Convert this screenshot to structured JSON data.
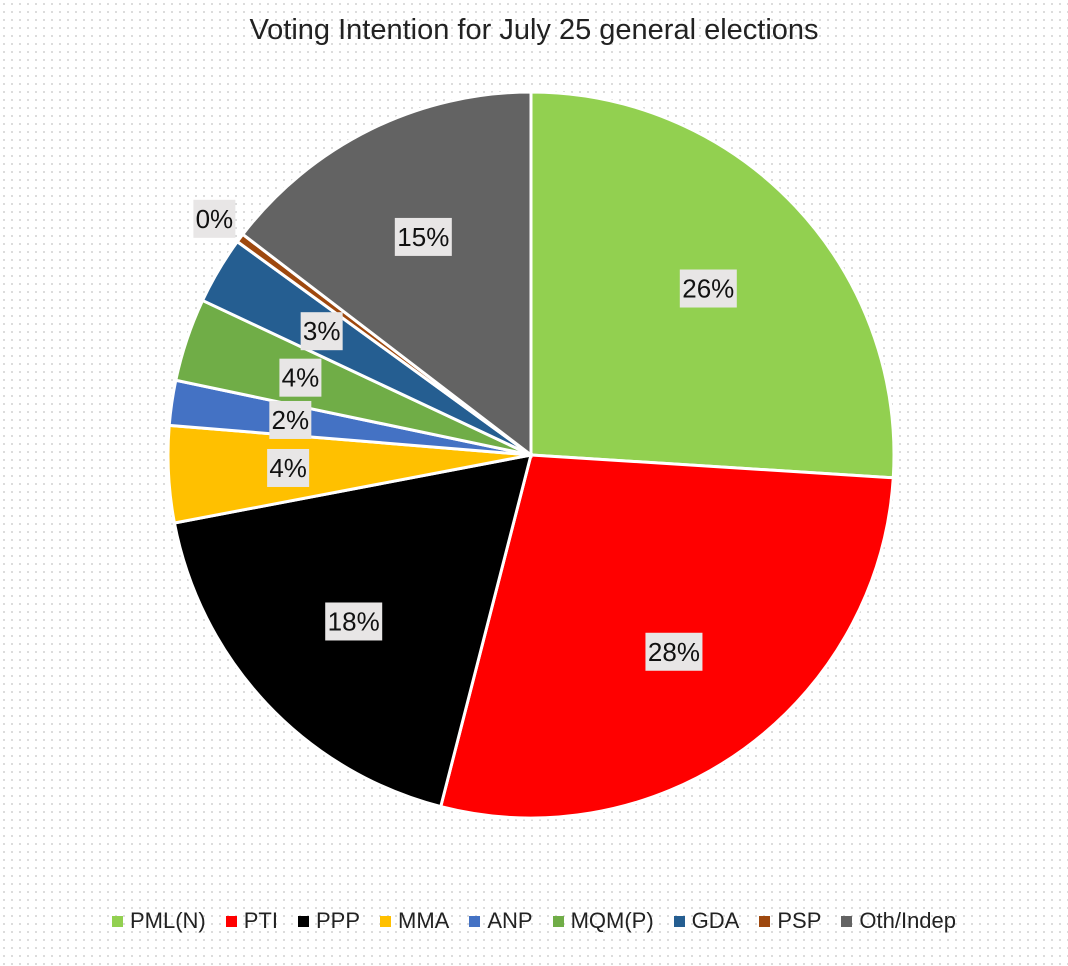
{
  "chart_data": {
    "type": "pie",
    "title": "Voting Intention for July 25 general elections",
    "start_angle_deg": 0,
    "direction": "clockwise",
    "legend_position": "bottom",
    "slices": [
      {
        "name": "PML(N)",
        "value": 26,
        "label": "26%",
        "color": "#92d050"
      },
      {
        "name": "PTI",
        "value": 28,
        "label": "28%",
        "color": "#ff0000"
      },
      {
        "name": "PPP",
        "value": 18,
        "label": "18%",
        "color": "#000000"
      },
      {
        "name": "MMA",
        "value": 4.3,
        "label": "4%",
        "color": "#ffc000"
      },
      {
        "name": "ANP",
        "value": 2,
        "label": "2%",
        "color": "#4472c4"
      },
      {
        "name": "MQM(P)",
        "value": 3.7,
        "label": "4%",
        "color": "#70ad47"
      },
      {
        "name": "GDA",
        "value": 3,
        "label": "3%",
        "color": "#255e91"
      },
      {
        "name": "PSP",
        "value": 0.4,
        "label": "0%",
        "color": "#9e480e"
      },
      {
        "name": "Oth/Indep",
        "value": 14.6,
        "label": "15%",
        "color": "#636363"
      }
    ]
  }
}
